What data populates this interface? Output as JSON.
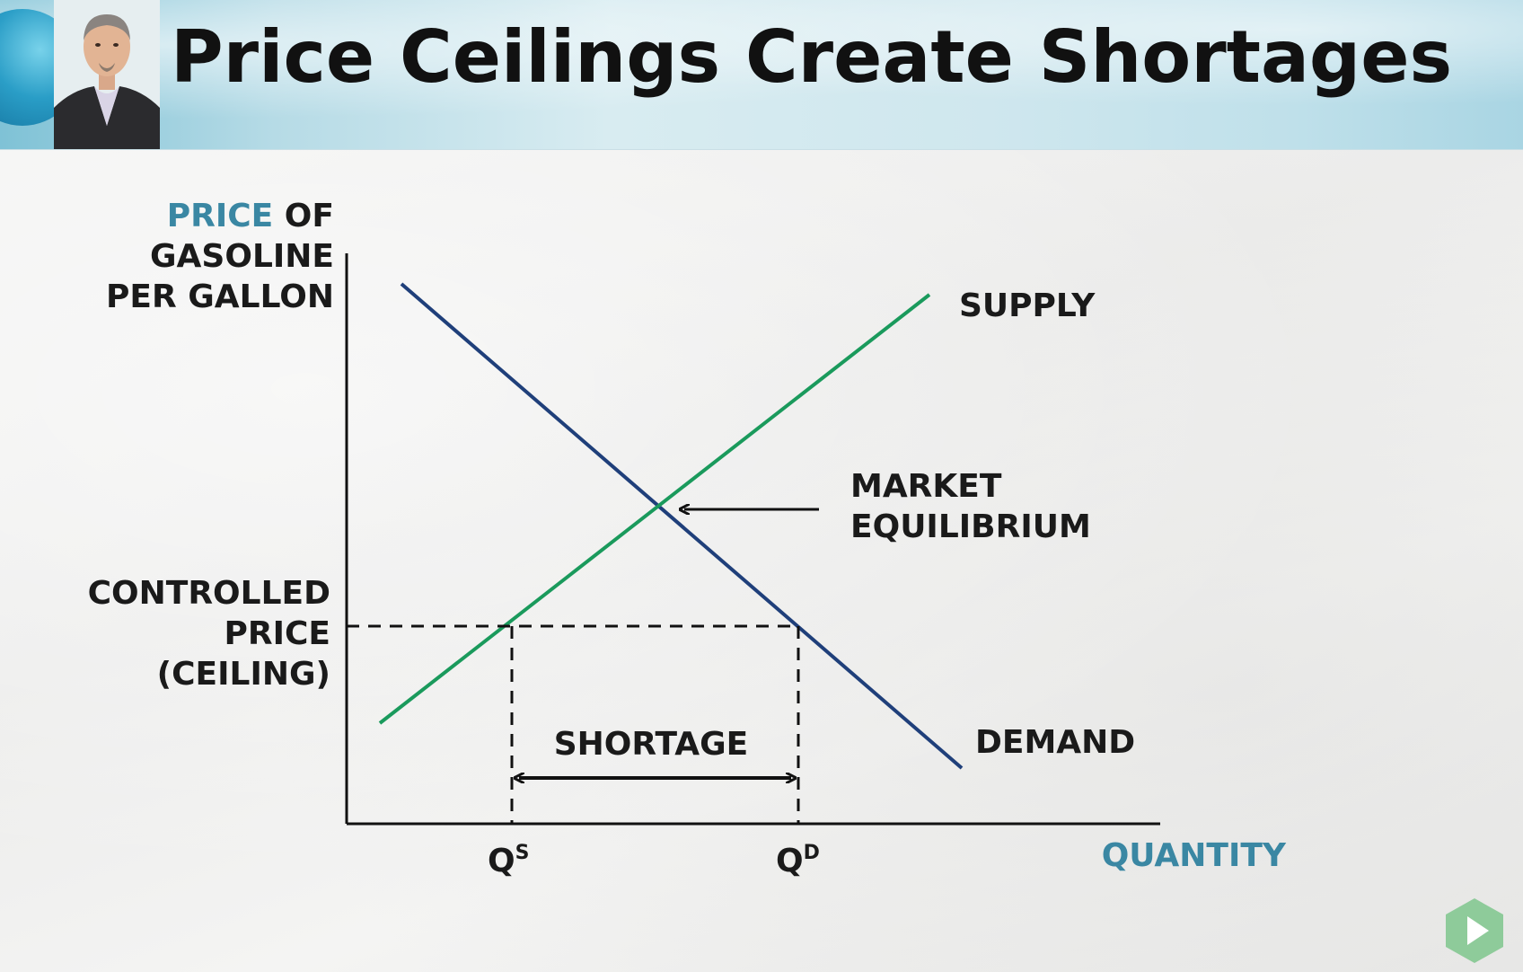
{
  "title": "Price Ceilings Create Shortages",
  "presenter_image": "presenter-avatar",
  "colors": {
    "supply": "#1a9a5c",
    "demand": "#1f3f7a",
    "axis_label_accent": "#3a87a3",
    "text": "#1a1a1a",
    "play_button": "#7ec58c"
  },
  "diagram": {
    "y_axis_label": {
      "line1_accent": "PRICE",
      "line1_rest": " OF",
      "line2": "GASOLINE",
      "line3": "PER GALLON"
    },
    "x_axis_label": "QUANTITY",
    "supply_label": "SUPPLY",
    "demand_label": "DEMAND",
    "equilibrium_label": {
      "line1": "MARKET",
      "line2": "EQUILIBRIUM"
    },
    "ceiling_label": {
      "line1": "CONTROLLED",
      "line2": "PRICE",
      "line3": "(CEILING)"
    },
    "shortage_label": "SHORTAGE",
    "qs_label": {
      "base": "Q",
      "sup": "S"
    },
    "qd_label": {
      "base": "Q",
      "sup": "D"
    }
  },
  "play_icon": "play-icon"
}
